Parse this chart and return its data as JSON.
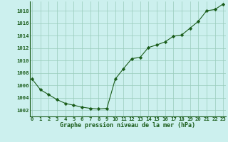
{
  "x": [
    0,
    1,
    2,
    3,
    4,
    5,
    6,
    7,
    8,
    9,
    10,
    11,
    12,
    13,
    14,
    15,
    16,
    17,
    18,
    19,
    20,
    21,
    22,
    23
  ],
  "y": [
    1007.0,
    1005.3,
    1004.5,
    1003.7,
    1003.1,
    1002.8,
    1002.5,
    1002.3,
    1002.2,
    1002.3,
    1007.0,
    1008.7,
    1010.3,
    1010.5,
    1012.1,
    1012.5,
    1013.0,
    1013.9,
    1014.1,
    1015.2,
    1016.3,
    1018.0,
    1018.2,
    1019.1
  ],
  "line_color": "#1a5c1a",
  "marker_color": "#1a5c1a",
  "bg_color": "#ccf0ee",
  "grid_color": "#99ccbb",
  "xlabel": "Graphe pression niveau de la mer (hPa)",
  "ylim": [
    1001.0,
    1019.5
  ],
  "xlim": [
    -0.3,
    23.3
  ],
  "yticks": [
    1002,
    1004,
    1006,
    1008,
    1010,
    1012,
    1014,
    1016,
    1018
  ],
  "xticks": [
    0,
    1,
    2,
    3,
    4,
    5,
    6,
    7,
    8,
    9,
    10,
    11,
    12,
    13,
    14,
    15,
    16,
    17,
    18,
    19,
    20,
    21,
    22,
    23
  ],
  "tick_fontsize": 5.2,
  "xlabel_fontsize": 6.0
}
